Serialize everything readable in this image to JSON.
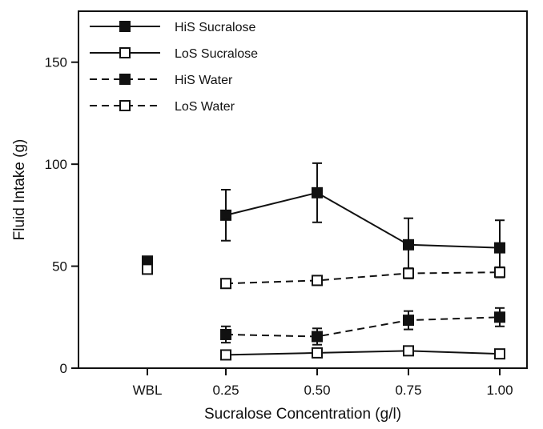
{
  "chart_data": {
    "type": "line",
    "title": "",
    "xlabel": "Sucralose Concentration (g/l)",
    "ylabel": "Fluid Intake (g)",
    "categories": [
      "WBL",
      "0.25",
      "0.50",
      "0.75",
      "1.00"
    ],
    "ylim": [
      0,
      175
    ],
    "yticks": [
      0,
      50,
      100,
      150
    ],
    "grid": false,
    "legend_position": "top-left",
    "series": [
      {
        "name": "HiS Sucralose",
        "marker": "filled-square",
        "line": "solid",
        "values": [
          null,
          75,
          86,
          60.5,
          59
        ],
        "errors": [
          null,
          12.5,
          14.5,
          13,
          13.5
        ]
      },
      {
        "name": "LoS Sucralose",
        "marker": "open-square",
        "line": "solid",
        "values": [
          null,
          6.5,
          7.5,
          8.5,
          7
        ],
        "errors": [
          null,
          0.8,
          0.8,
          0.8,
          0.8
        ]
      },
      {
        "name": "HiS Water",
        "marker": "filled-square",
        "line": "dashed",
        "values": [
          52.5,
          16.5,
          15.5,
          23.5,
          25
        ],
        "errors": [
          1,
          4,
          4,
          4.5,
          4.5
        ]
      },
      {
        "name": "LoS Water",
        "marker": "open-square",
        "line": "dashed",
        "values": [
          48.5,
          41.5,
          43,
          46.5,
          47
        ],
        "errors": [
          1,
          1.5,
          2,
          2.5,
          2.5
        ]
      }
    ]
  }
}
